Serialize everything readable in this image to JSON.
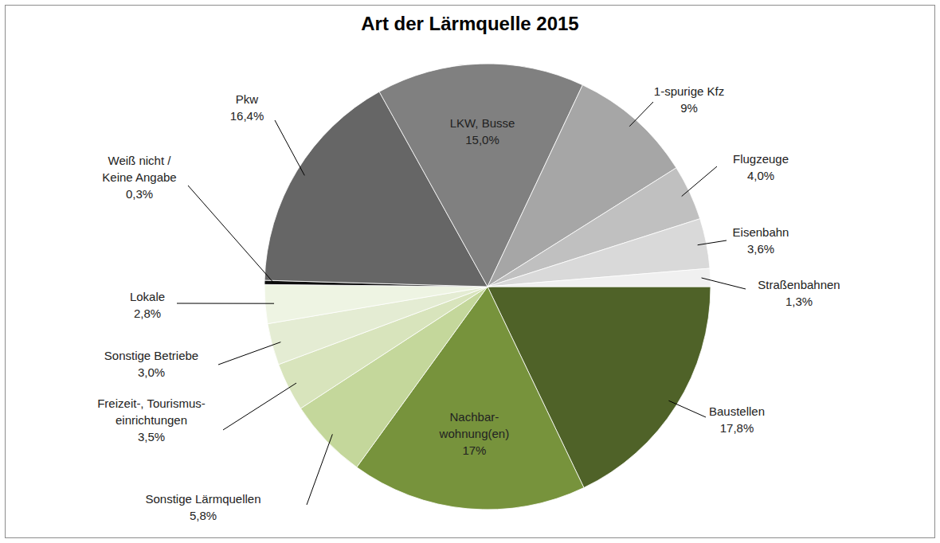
{
  "chart_data": {
    "type": "pie",
    "title": "Art der Lärmquelle 2015",
    "categories": [
      "Baustellen",
      "Nachbar-\nwohnung(en)",
      "Sonstige Lärmquellen",
      "Freizeit-, Tourismus-\neinrichtungen",
      "Sonstige Betriebe",
      "Lokale",
      "Weiß nicht /\nKeine Angabe",
      "Pkw",
      "LKW, Busse",
      "1-spurige Kfz",
      "Flugzeuge",
      "Eisenbahn",
      "Straßenbahnen"
    ],
    "values": [
      17.8,
      17,
      5.8,
      3.5,
      3.0,
      2.8,
      0.3,
      16.4,
      15.0,
      9,
      4.0,
      3.6,
      1.3
    ],
    "value_labels": [
      "17,8%",
      "17%",
      "5,8%",
      "3,5%",
      "3,0%",
      "2,8%",
      "0,3%",
      "16,4%",
      "15,0%",
      "9%",
      "4,0%",
      "3,6%",
      "1,3%"
    ],
    "colors": [
      "#4f6228",
      "#77933c",
      "#c4d79b",
      "#d8e4bc",
      "#e4ecd3",
      "#eef4e3",
      "#0d0d0d",
      "#666666",
      "#808080",
      "#a6a6a6",
      "#c0c0c0",
      "#d9d9d9",
      "#f0f0f0"
    ],
    "data_labels": true
  }
}
